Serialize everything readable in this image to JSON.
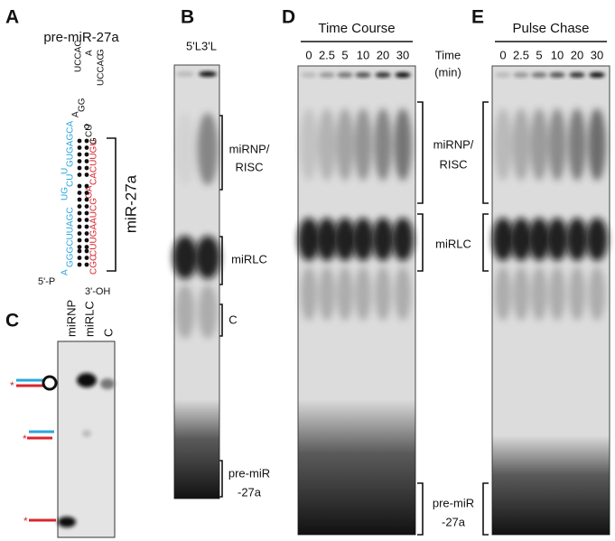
{
  "panels": {
    "A": {
      "label": "A",
      "title": "pre-miR-27a",
      "mirna": "miR-27a",
      "five_prime": "5'-P",
      "three_prime": "3'-OH",
      "loop": [
        "UCCAC",
        "A",
        "UCCAC",
        "G"
      ],
      "blue_strand": [
        "A",
        "GGGCUUAGC",
        "UG",
        "CU",
        "U",
        "GUGAGCA",
        "A",
        "GG"
      ],
      "red_strand": [
        "CGC",
        "CUUGAAUCG",
        "GA",
        "CACUUGU",
        "G",
        "CU"
      ]
    },
    "B": {
      "label": "B",
      "lanes": [
        "5'L",
        "3'L"
      ],
      "brackets": [
        [
          "miRNP/",
          "RISC"
        ],
        [
          "miRLC"
        ],
        [
          "C"
        ],
        [
          "pre-miR",
          "-27a"
        ]
      ]
    },
    "C": {
      "label": "C",
      "lanes": [
        "miRNP",
        "miRLC",
        "C"
      ]
    },
    "D": {
      "label": "D",
      "title": "Time Course",
      "time_label": [
        "Time",
        "(min)"
      ],
      "lanes": [
        "0",
        "2.5",
        "5",
        "10",
        "20",
        "30"
      ]
    },
    "E": {
      "label": "E",
      "title": "Pulse Chase",
      "lanes": [
        "0",
        "2.5",
        "5",
        "10",
        "20",
        "30"
      ]
    },
    "shared_brackets": [
      [
        "miRNP/",
        "RISC"
      ],
      [
        "miRLC"
      ],
      [
        "pre-miR",
        "-27a"
      ]
    ]
  }
}
